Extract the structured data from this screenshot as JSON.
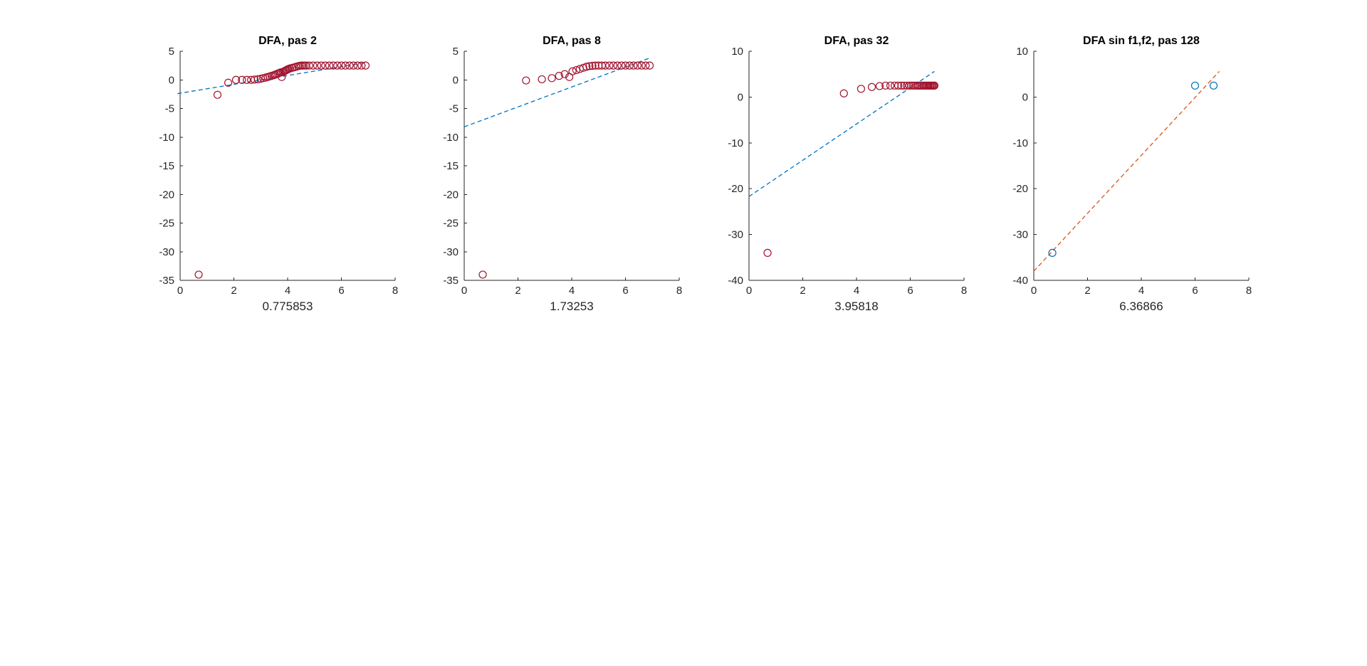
{
  "chart_data": [
    {
      "type": "scatter",
      "title": "DFA, pas 2",
      "xlabel": "0.775853",
      "ylabel": "",
      "xlim": [
        0,
        8
      ],
      "ylim": [
        -35,
        5
      ],
      "xticks": [
        0,
        2,
        4,
        6,
        8
      ],
      "yticks": [
        -35,
        -30,
        -25,
        -20,
        -15,
        -10,
        -5,
        0,
        5
      ],
      "grid": false,
      "series": [
        {
          "kind": "markers",
          "color": "#A2142F",
          "x": [
            0.69,
            1.39,
            1.79,
            2.08,
            2.3,
            2.48,
            2.64,
            2.77,
            2.89,
            3.0,
            3.09,
            3.18,
            3.26,
            3.33,
            3.4,
            3.47,
            3.53,
            3.58,
            3.64,
            3.69,
            3.74,
            3.78,
            3.83,
            3.87,
            3.91,
            3.95,
            3.99,
            4.03,
            4.09,
            4.17,
            4.25,
            4.32,
            4.39,
            4.45,
            4.51,
            4.57,
            4.63,
            4.69,
            4.8,
            4.95,
            5.1,
            5.25,
            5.4,
            5.55,
            5.7,
            5.85,
            6.0,
            6.15,
            6.3,
            6.45,
            6.6,
            6.75,
            6.9
          ],
          "y": [
            -34,
            -2.6,
            -0.5,
            0.0,
            0.0,
            0.0,
            0.0,
            0.05,
            0.1,
            0.2,
            0.3,
            0.4,
            0.5,
            0.6,
            0.7,
            0.8,
            0.9,
            1.0,
            1.1,
            1.2,
            1.3,
            0.5,
            1.4,
            1.5,
            1.6,
            1.7,
            1.8,
            1.9,
            2.0,
            2.1,
            2.2,
            2.3,
            2.4,
            2.45,
            2.5,
            2.5,
            2.5,
            2.5,
            2.5,
            2.5,
            2.5,
            2.5,
            2.5,
            2.5,
            2.5,
            2.5,
            2.5,
            2.5,
            2.5,
            2.5,
            2.5,
            2.5,
            2.5
          ]
        },
        {
          "kind": "fit-line",
          "color": "#0072BD",
          "x": [
            -0.1,
            6.9
          ],
          "y": [
            -2.4,
            3.0
          ]
        }
      ]
    },
    {
      "type": "scatter",
      "title": "DFA, pas 8",
      "xlabel": "1.73253",
      "ylabel": "",
      "xlim": [
        0,
        8
      ],
      "ylim": [
        -35,
        5
      ],
      "xticks": [
        0,
        2,
        4,
        6,
        8
      ],
      "yticks": [
        -35,
        -30,
        -25,
        -20,
        -15,
        -10,
        -5,
        0,
        5
      ],
      "grid": false,
      "series": [
        {
          "kind": "markers",
          "color": "#A2142F",
          "x": [
            0.69,
            2.3,
            2.89,
            3.26,
            3.53,
            3.74,
            3.91,
            4.03,
            4.17,
            4.3,
            4.43,
            4.55,
            4.66,
            4.77,
            4.88,
            5.0,
            5.12,
            5.25,
            5.4,
            5.55,
            5.7,
            5.85,
            6.0,
            6.15,
            6.3,
            6.45,
            6.6,
            6.75,
            6.9
          ],
          "y": [
            -34,
            -0.1,
            0.1,
            0.3,
            0.7,
            1.0,
            0.5,
            1.5,
            1.7,
            1.9,
            2.1,
            2.3,
            2.4,
            2.45,
            2.5,
            2.5,
            2.5,
            2.5,
            2.5,
            2.5,
            2.5,
            2.5,
            2.5,
            2.5,
            2.5,
            2.5,
            2.5,
            2.5,
            2.5
          ]
        },
        {
          "kind": "fit-line",
          "color": "#0072BD",
          "x": [
            0.0,
            6.9
          ],
          "y": [
            -8.2,
            3.8
          ]
        }
      ]
    },
    {
      "type": "scatter",
      "title": "DFA, pas 32",
      "xlabel": "3.95818",
      "ylabel": "",
      "xlim": [
        0,
        8
      ],
      "ylim": [
        -40,
        10
      ],
      "xticks": [
        0,
        2,
        4,
        6,
        8
      ],
      "yticks": [
        -40,
        -30,
        -20,
        -10,
        0,
        10
      ],
      "grid": false,
      "series": [
        {
          "kind": "markers",
          "color": "#A2142F",
          "x": [
            0.69,
            3.53,
            4.17,
            4.57,
            4.86,
            5.08,
            5.26,
            5.42,
            5.55,
            5.67,
            5.77,
            5.87,
            5.96,
            6.04,
            6.11,
            6.18,
            6.25,
            6.31,
            6.37,
            6.42,
            6.48,
            6.53,
            6.58,
            6.62,
            6.67,
            6.71,
            6.75,
            6.79,
            6.83,
            6.87,
            6.9
          ],
          "y": [
            -34,
            0.8,
            1.8,
            2.2,
            2.4,
            2.5,
            2.5,
            2.5,
            2.5,
            2.5,
            2.5,
            2.5,
            2.5,
            2.5,
            2.5,
            2.5,
            2.5,
            2.5,
            2.5,
            2.5,
            2.5,
            2.5,
            2.5,
            2.5,
            2.5,
            2.5,
            2.5,
            2.5,
            2.5,
            2.5,
            2.5
          ]
        },
        {
          "kind": "fit-line",
          "color": "#0072BD",
          "x": [
            0.0,
            6.9
          ],
          "y": [
            -21.7,
            5.6
          ]
        }
      ]
    },
    {
      "type": "scatter",
      "title": "DFA sin f1,f2, pas 128",
      "xlabel": "6.36866",
      "ylabel": "",
      "xlim": [
        0,
        8
      ],
      "ylim": [
        -40,
        10
      ],
      "xticks": [
        0,
        2,
        4,
        6,
        8
      ],
      "yticks": [
        -40,
        -30,
        -20,
        -10,
        0,
        10
      ],
      "grid": false,
      "series": [
        {
          "kind": "markers",
          "color": "#0072BD",
          "x": [
            0.69,
            6.0,
            6.69
          ],
          "y": [
            -34,
            2.5,
            2.5
          ]
        },
        {
          "kind": "fit-line",
          "color": "#D95319",
          "x": [
            0.0,
            6.9
          ],
          "y": [
            -38.0,
            5.6
          ]
        }
      ]
    }
  ]
}
